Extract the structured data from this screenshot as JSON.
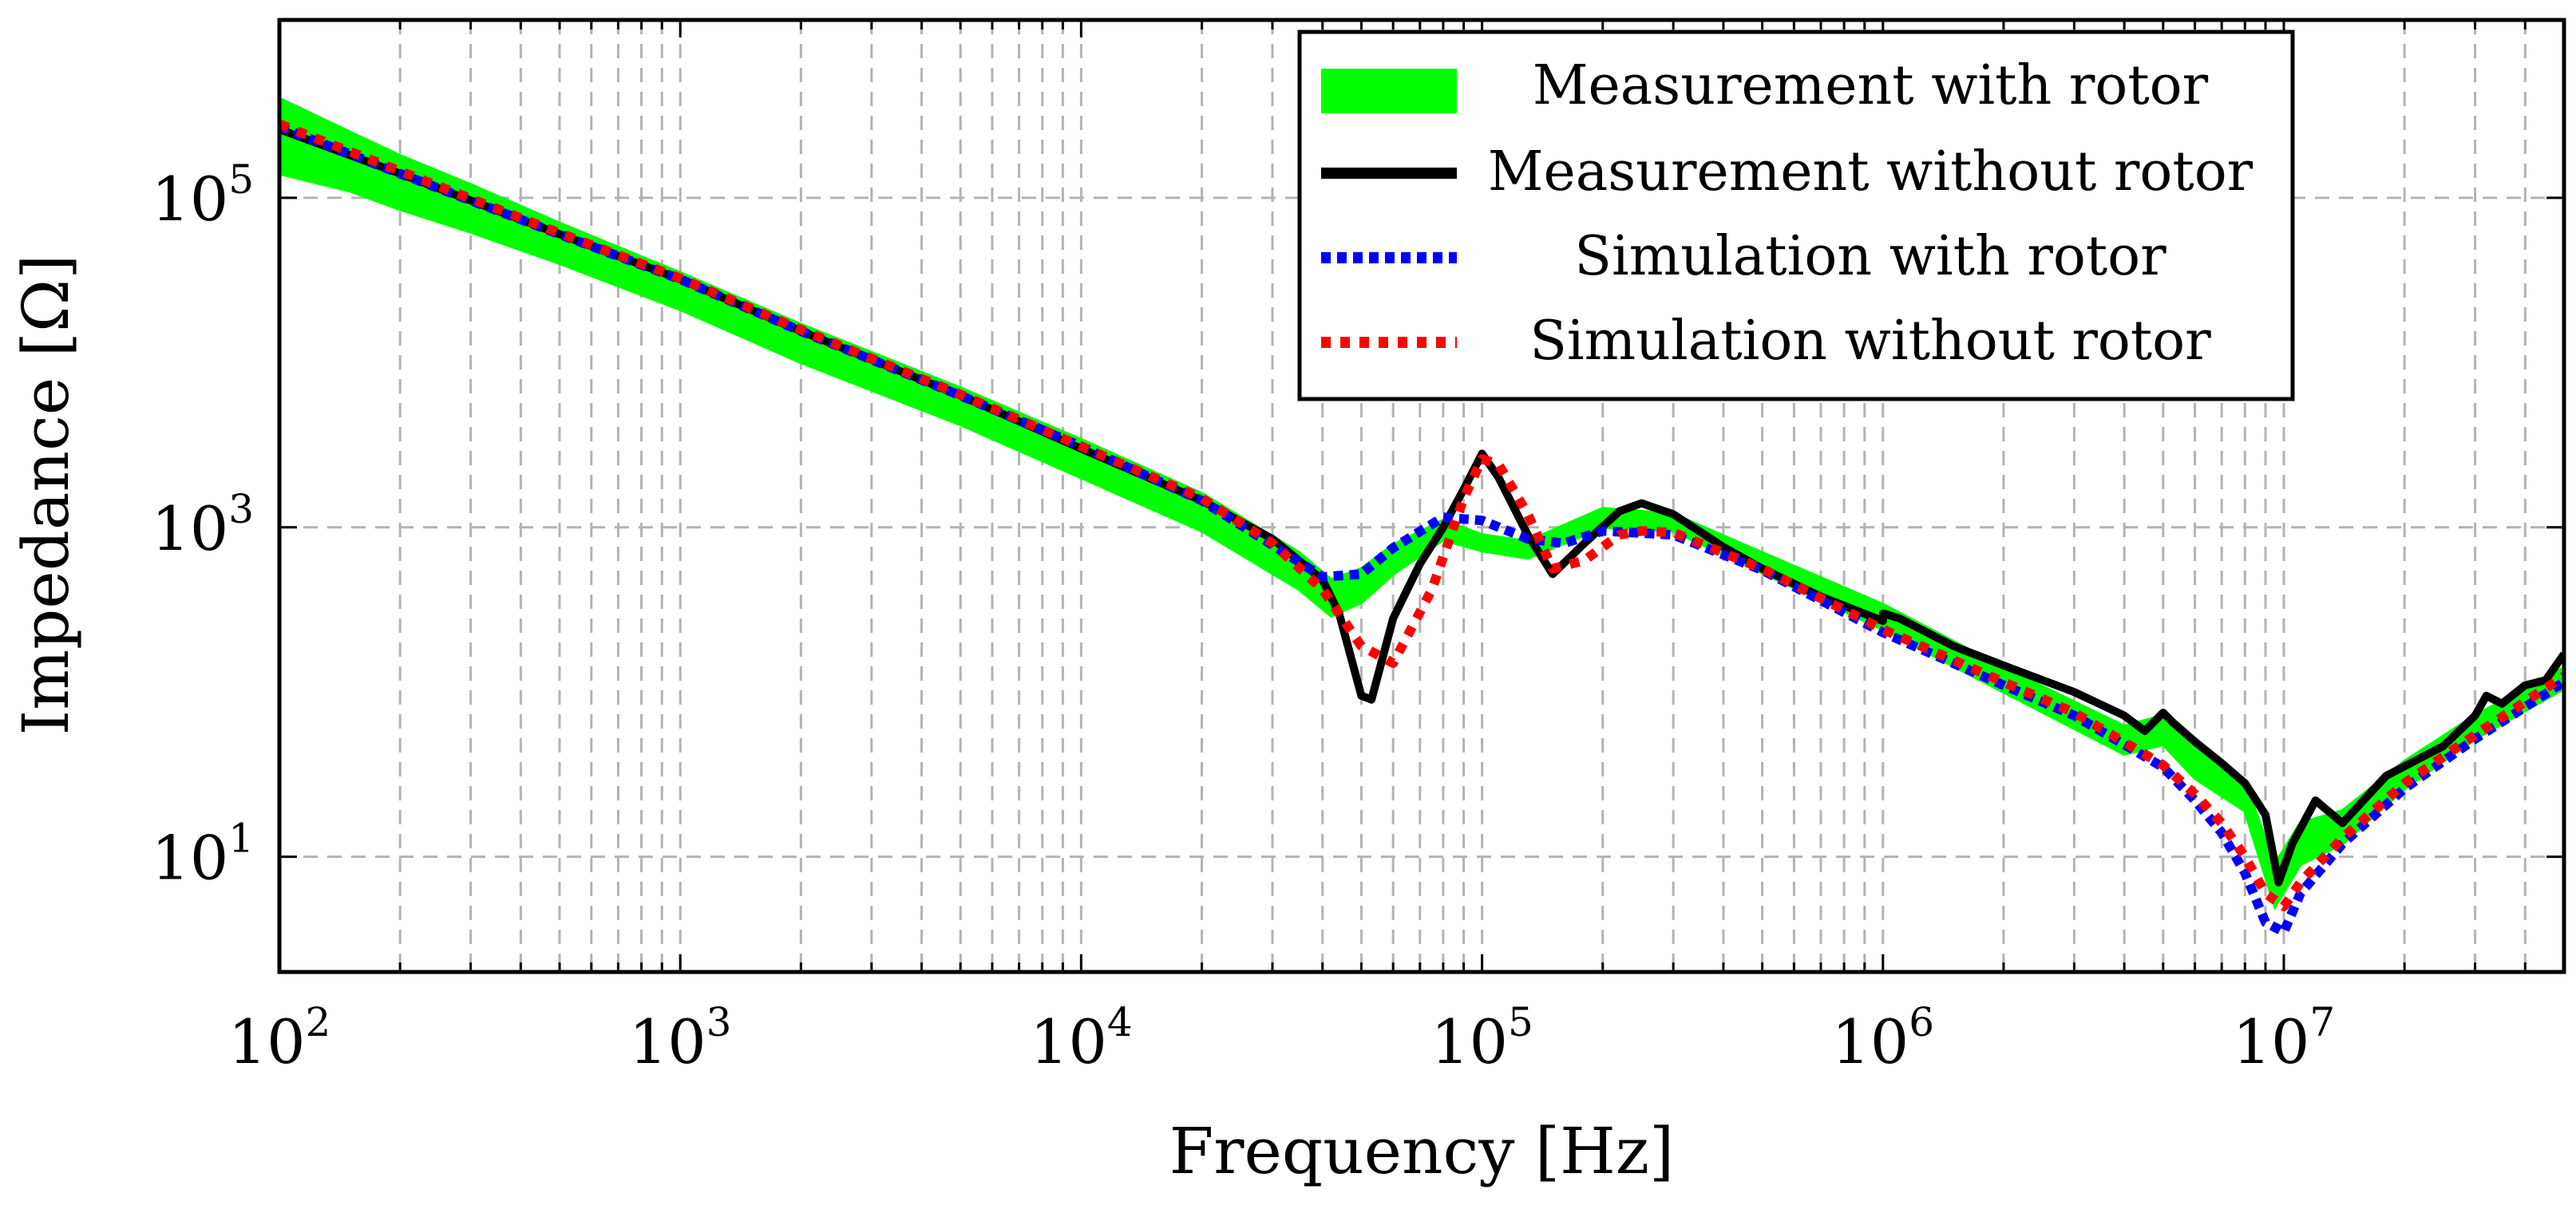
{
  "chart_data": {
    "type": "line",
    "xscale": "log",
    "yscale": "log",
    "xlim": [
      100,
      50000000
    ],
    "ylim": [
      2,
      1200000
    ],
    "grid": true,
    "xlabel": "Frequency [Hz]",
    "ylabel": "Impedance [Ω]",
    "x_ticks": [
      {
        "base": "10",
        "exp": "2",
        "value": 100
      },
      {
        "base": "10",
        "exp": "3",
        "value": 1000
      },
      {
        "base": "10",
        "exp": "4",
        "value": 10000
      },
      {
        "base": "10",
        "exp": "5",
        "value": 100000
      },
      {
        "base": "10",
        "exp": "6",
        "value": 1000000
      },
      {
        "base": "10",
        "exp": "7",
        "value": 10000000
      }
    ],
    "y_ticks": [
      {
        "base": "10",
        "exp": "1",
        "value": 10
      },
      {
        "base": "10",
        "exp": "3",
        "value": 1000
      },
      {
        "base": "10",
        "exp": "5",
        "value": 100000
      }
    ],
    "legend_position": "top-right",
    "series": [
      {
        "name": "Measurement with rotor",
        "color": "#00ff00",
        "style": "band",
        "x": [
          100,
          150,
          200,
          300,
          500,
          1000,
          2000,
          5000,
          10000,
          20000,
          35000,
          42000,
          50000,
          60000,
          80000,
          100000,
          130000,
          200000,
          300000,
          500000,
          1000000,
          2000000,
          4000000,
          5000000,
          6000000,
          8000000,
          9500000,
          11000000,
          14000000,
          20000000,
          30000000,
          50000000
        ],
        "upper": [
          400000,
          250000,
          180000,
          120000,
          70000,
          35000,
          17000,
          7000,
          3400,
          1600,
          700,
          480,
          560,
          780,
          1100,
          900,
          820,
          1300,
          1200,
          700,
          340,
          140,
          62,
          72,
          45,
          28,
          9,
          16,
          19,
          38,
          72,
          140
        ],
        "lower": [
          140000,
          110000,
          85000,
          62000,
          40000,
          21000,
          10000,
          4200,
          2000,
          950,
          420,
          290,
          350,
          520,
          840,
          720,
          650,
          1000,
          950,
          530,
          240,
          100,
          42,
          48,
          30,
          19,
          5,
          9,
          12,
          26,
          52,
          105
        ]
      },
      {
        "name": "Measurement without rotor",
        "color": "#000000",
        "style": "solid",
        "x": [
          100,
          200,
          500,
          1000,
          2000,
          5000,
          10000,
          20000,
          30000,
          40000,
          44000,
          50000,
          53000,
          60000,
          70000,
          80000,
          90000,
          100000,
          110000,
          130000,
          150000,
          180000,
          220000,
          250000,
          300000,
          400000,
          500000,
          700000,
          1000000,
          1000500,
          1100000,
          1500000,
          2000000,
          3000000,
          4000000,
          4500000,
          5000000,
          5300000,
          6000000,
          7000000,
          8000000,
          9000000,
          9700000,
          10500000,
          12000000,
          14000000,
          18000000,
          25000000,
          30000000,
          32000000,
          35000000,
          40000000,
          45000000,
          50000000
        ],
        "y": [
          260000,
          140000,
          60000,
          32000,
          15500,
          6300,
          3000,
          1450,
          850,
          480,
          300,
          95,
          90,
          280,
          600,
          1000,
          1700,
          2800,
          2000,
          900,
          520,
          800,
          1250,
          1400,
          1200,
          760,
          560,
          380,
          270,
          300,
          280,
          190,
          145,
          100,
          72,
          58,
          75,
          65,
          50,
          37,
          28,
          18,
          7,
          12,
          22,
          16,
          31,
          47,
          72,
          95,
          85,
          110,
          118,
          170
        ]
      },
      {
        "name": "Simulation with rotor",
        "color": "#0000ff",
        "style": "dotted",
        "x": [
          100,
          200,
          500,
          1000,
          2000,
          5000,
          10000,
          20000,
          30000,
          40000,
          50000,
          60000,
          80000,
          100000,
          130000,
          160000,
          200000,
          300000,
          500000,
          1000000,
          2000000,
          3000000,
          5000000,
          6000000,
          7000000,
          8000000,
          9000000,
          10000000,
          11000000,
          14000000,
          20000000,
          30000000,
          50000000
        ],
        "y": [
          270000,
          140000,
          60000,
          32000,
          15500,
          6300,
          3100,
          1450,
          780,
          500,
          520,
          750,
          1150,
          1100,
          850,
          800,
          950,
          900,
          550,
          230,
          110,
          72,
          35,
          22,
          14,
          8,
          4,
          3.5,
          6,
          12,
          26,
          52,
          115
        ]
      },
      {
        "name": "Simulation without rotor",
        "color": "#ff0000",
        "style": "dotted",
        "x": [
          100,
          200,
          500,
          1000,
          2000,
          5000,
          10000,
          20000,
          30000,
          40000,
          50000,
          60000,
          75000,
          90000,
          100000,
          110000,
          130000,
          150000,
          180000,
          220000,
          250000,
          300000,
          400000,
          500000,
          1000000,
          2000000,
          3000000,
          5000000,
          6000000,
          7000000,
          8000000,
          9000000,
          10000000,
          11000000,
          14000000,
          20000000,
          30000000,
          50000000
        ],
        "y": [
          280000,
          145000,
          61000,
          32500,
          15800,
          6400,
          3100,
          1500,
          800,
          420,
          190,
          150,
          420,
          1500,
          2600,
          2400,
          1200,
          560,
          630,
          900,
          950,
          930,
          700,
          560,
          240,
          115,
          75,
          36,
          24,
          16,
          10,
          6,
          5,
          7,
          13,
          28,
          55,
          125
        ]
      }
    ]
  }
}
